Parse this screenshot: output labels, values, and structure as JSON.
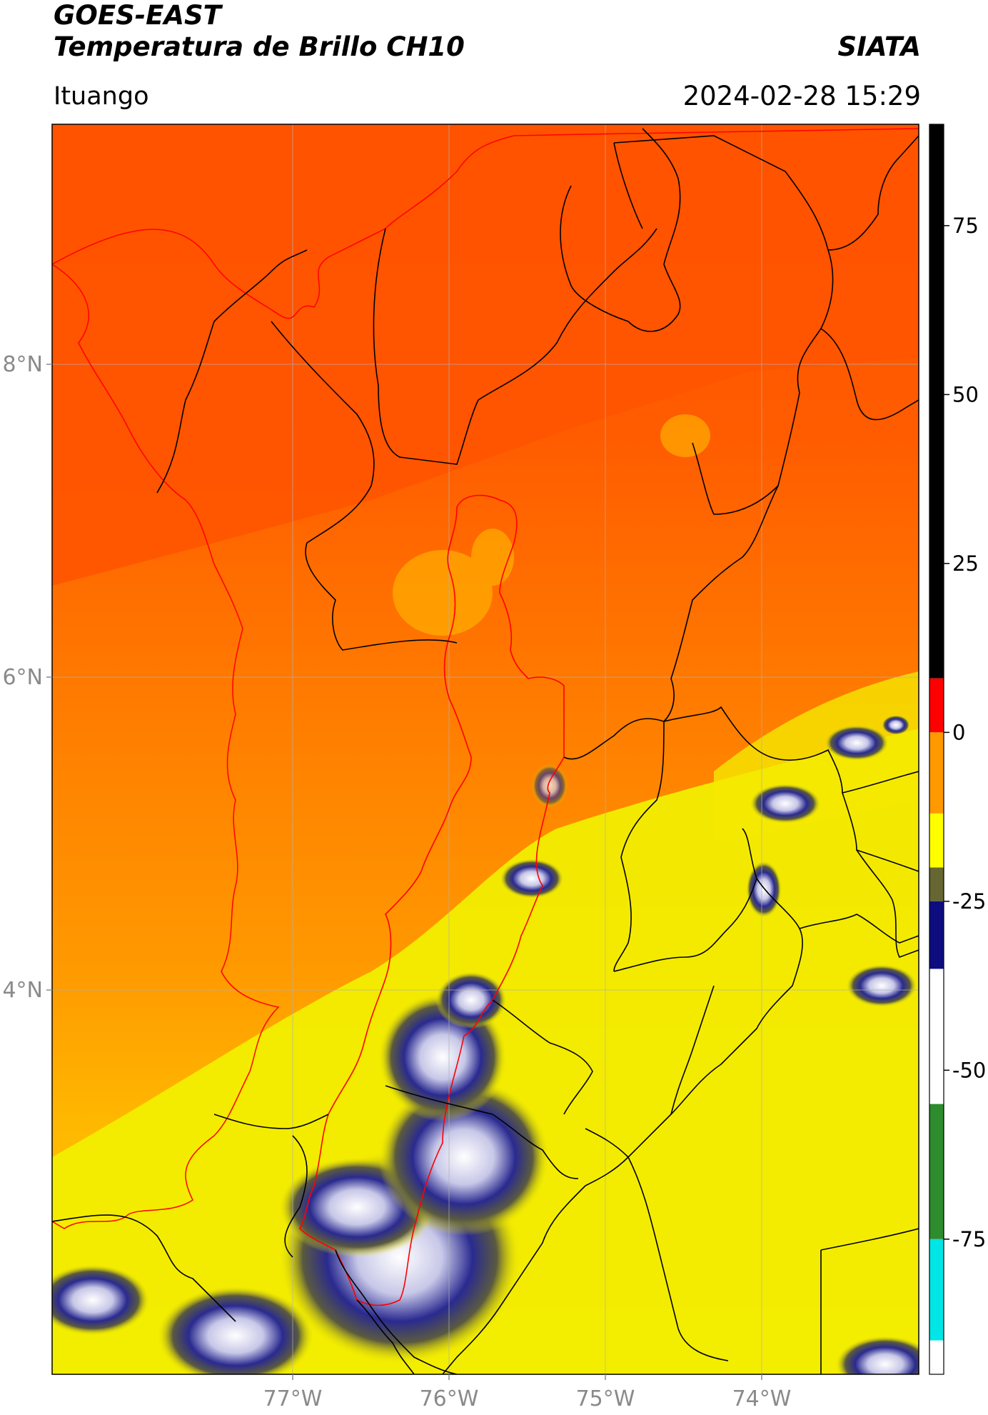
{
  "header": {
    "satellite": "GOES-EAST",
    "product": "Temperatura de Brillo CH10",
    "institution": "SIATA",
    "region": "Ituango",
    "datetime": "2024-02-28 15:29"
  },
  "map": {
    "latitude_labels": [
      "8°N",
      "6°N",
      "4°N"
    ],
    "longitude_labels": [
      "77°W",
      "76°W",
      "75°W",
      "74°W"
    ],
    "basemap_colors": {
      "warm": "#ff5a00",
      "mid": "#ff9a00",
      "cold": "#f5f000"
    }
  },
  "colorbar": {
    "ticks": [
      75,
      50,
      25,
      0,
      -25,
      -50,
      -75
    ],
    "range": [
      -95,
      90
    ],
    "segments": [
      {
        "from": 90,
        "to": 8,
        "color": "#000000"
      },
      {
        "from": 8,
        "to": 0,
        "color": "#ff0000"
      },
      {
        "from": 0,
        "to": -12,
        "color": "#ff9900"
      },
      {
        "from": -12,
        "to": -20,
        "color": "#ffff00"
      },
      {
        "from": -20,
        "to": -25,
        "color": "#666633"
      },
      {
        "from": -25,
        "to": -35,
        "color": "#0d0d80"
      },
      {
        "from": -35,
        "to": -55,
        "color": "#ffffff"
      },
      {
        "from": -55,
        "to": -75,
        "color": "#2e8b2e"
      },
      {
        "from": -75,
        "to": -90,
        "color": "#00e5e5"
      },
      {
        "from": -90,
        "to": -95,
        "color": "#ffffff"
      }
    ]
  }
}
